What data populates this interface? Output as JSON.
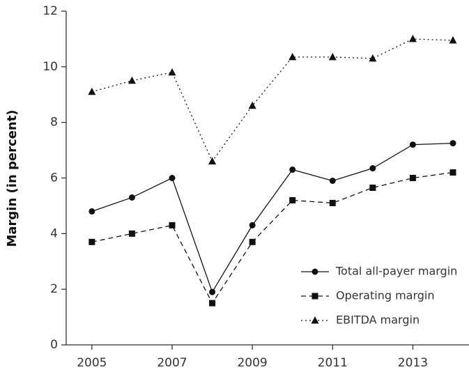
{
  "chart_data": {
    "type": "line",
    "y_label": "Margin (in percent)",
    "x": [
      2005,
      2006,
      2007,
      2008,
      2009,
      2010,
      2011,
      2012,
      2013,
      2014
    ],
    "xlim": [
      2004.36,
      2014.4
    ],
    "xticks": [
      2005,
      2007,
      2009,
      2011,
      2013
    ],
    "ylim": [
      0,
      12
    ],
    "yticks": [
      0,
      2,
      4,
      6,
      8,
      10,
      12
    ],
    "legend": "lower right",
    "series": [
      {
        "name": "Total all-payer margin",
        "color": "#111111",
        "dash": "solid",
        "marker": "circle",
        "values": [
          4.8,
          5.3,
          6.0,
          1.9,
          4.3,
          6.3,
          5.9,
          6.35,
          7.2,
          7.25
        ]
      },
      {
        "name": "Operating margin",
        "color": "#111111",
        "dash": "dashed",
        "marker": "square",
        "values": [
          3.7,
          4.0,
          4.3,
          1.5,
          3.7,
          5.2,
          5.1,
          5.65,
          6.0,
          6.2
        ]
      },
      {
        "name": "EBITDA margin",
        "color": "#111111",
        "dash": "dotted",
        "marker": "triangle",
        "values": [
          9.1,
          9.5,
          9.8,
          6.6,
          8.6,
          10.35,
          10.35,
          10.3,
          11.0,
          10.95
        ]
      }
    ]
  }
}
